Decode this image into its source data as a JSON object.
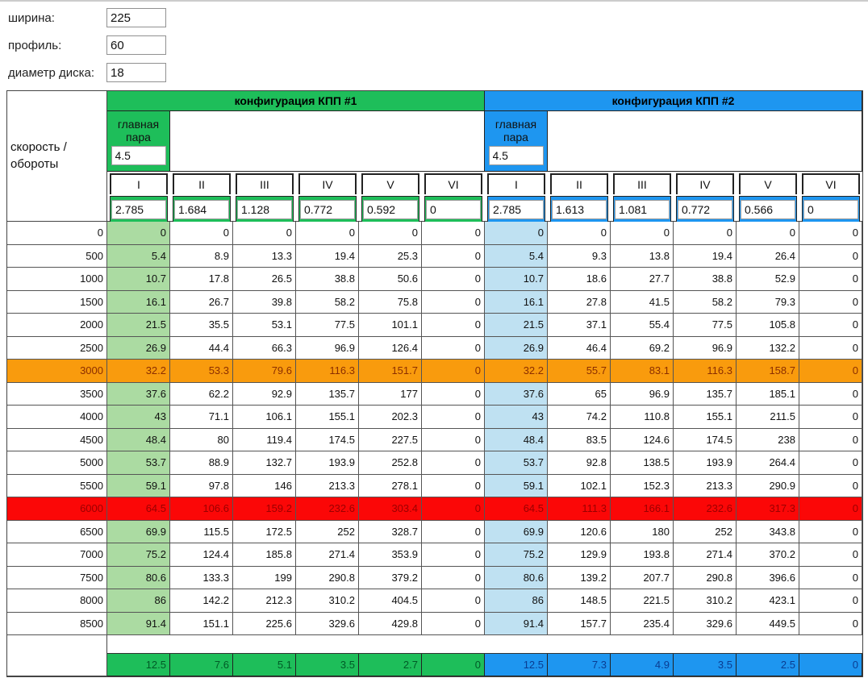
{
  "inputs": [
    {
      "label": "ширина:",
      "value": "225"
    },
    {
      "label": "профиль:",
      "value": "60"
    },
    {
      "label": "диаметр диска:",
      "value": "18"
    }
  ],
  "table": {
    "corner_label": "скорость / обороты",
    "final_drive_label": "главная пара",
    "configs": [
      {
        "title": "конфигурация КПП #1",
        "final_drive": "4.5",
        "gear_labels": [
          "I",
          "II",
          "III",
          "IV",
          "V",
          "VI"
        ],
        "ratios": [
          "2.785",
          "1.684",
          "1.128",
          "0.772",
          "0.592",
          "0"
        ],
        "footer": [
          "12.5",
          "7.6",
          "5.1",
          "3.5",
          "2.7",
          "0"
        ]
      },
      {
        "title": "конфигурация КПП #2",
        "final_drive": "4.5",
        "gear_labels": [
          "I",
          "II",
          "III",
          "IV",
          "V",
          "VI"
        ],
        "ratios": [
          "2.785",
          "1.613",
          "1.081",
          "0.772",
          "0.566",
          "0"
        ],
        "footer": [
          "12.5",
          "7.3",
          "4.9",
          "3.5",
          "2.5",
          "0"
        ]
      }
    ],
    "rows": [
      {
        "rpm": "0",
        "c1": [
          "0",
          "0",
          "0",
          "0",
          "0",
          "0"
        ],
        "c2": [
          "0",
          "0",
          "0",
          "0",
          "0",
          "0"
        ],
        "highlight": ""
      },
      {
        "rpm": "500",
        "c1": [
          "5.4",
          "8.9",
          "13.3",
          "19.4",
          "25.3",
          "0"
        ],
        "c2": [
          "5.4",
          "9.3",
          "13.8",
          "19.4",
          "26.4",
          "0"
        ],
        "highlight": ""
      },
      {
        "rpm": "1000",
        "c1": [
          "10.7",
          "17.8",
          "26.5",
          "38.8",
          "50.6",
          "0"
        ],
        "c2": [
          "10.7",
          "18.6",
          "27.7",
          "38.8",
          "52.9",
          "0"
        ],
        "highlight": ""
      },
      {
        "rpm": "1500",
        "c1": [
          "16.1",
          "26.7",
          "39.8",
          "58.2",
          "75.8",
          "0"
        ],
        "c2": [
          "16.1",
          "27.8",
          "41.5",
          "58.2",
          "79.3",
          "0"
        ],
        "highlight": ""
      },
      {
        "rpm": "2000",
        "c1": [
          "21.5",
          "35.5",
          "53.1",
          "77.5",
          "101.1",
          "0"
        ],
        "c2": [
          "21.5",
          "37.1",
          "55.4",
          "77.5",
          "105.8",
          "0"
        ],
        "highlight": ""
      },
      {
        "rpm": "2500",
        "c1": [
          "26.9",
          "44.4",
          "66.3",
          "96.9",
          "126.4",
          "0"
        ],
        "c2": [
          "26.9",
          "46.4",
          "69.2",
          "96.9",
          "132.2",
          "0"
        ],
        "highlight": ""
      },
      {
        "rpm": "3000",
        "c1": [
          "32.2",
          "53.3",
          "79.6",
          "116.3",
          "151.7",
          "0"
        ],
        "c2": [
          "32.2",
          "55.7",
          "83.1",
          "116.3",
          "158.7",
          "0"
        ],
        "highlight": "orange"
      },
      {
        "rpm": "3500",
        "c1": [
          "37.6",
          "62.2",
          "92.9",
          "135.7",
          "177",
          "0"
        ],
        "c2": [
          "37.6",
          "65",
          "96.9",
          "135.7",
          "185.1",
          "0"
        ],
        "highlight": ""
      },
      {
        "rpm": "4000",
        "c1": [
          "43",
          "71.1",
          "106.1",
          "155.1",
          "202.3",
          "0"
        ],
        "c2": [
          "43",
          "74.2",
          "110.8",
          "155.1",
          "211.5",
          "0"
        ],
        "highlight": ""
      },
      {
        "rpm": "4500",
        "c1": [
          "48.4",
          "80",
          "119.4",
          "174.5",
          "227.5",
          "0"
        ],
        "c2": [
          "48.4",
          "83.5",
          "124.6",
          "174.5",
          "238",
          "0"
        ],
        "highlight": ""
      },
      {
        "rpm": "5000",
        "c1": [
          "53.7",
          "88.9",
          "132.7",
          "193.9",
          "252.8",
          "0"
        ],
        "c2": [
          "53.7",
          "92.8",
          "138.5",
          "193.9",
          "264.4",
          "0"
        ],
        "highlight": ""
      },
      {
        "rpm": "5500",
        "c1": [
          "59.1",
          "97.8",
          "146",
          "213.3",
          "278.1",
          "0"
        ],
        "c2": [
          "59.1",
          "102.1",
          "152.3",
          "213.3",
          "290.9",
          "0"
        ],
        "highlight": ""
      },
      {
        "rpm": "6000",
        "c1": [
          "64.5",
          "106.6",
          "159.2",
          "232.6",
          "303.4",
          "0"
        ],
        "c2": [
          "64.5",
          "111.3",
          "166.1",
          "232.6",
          "317.3",
          "0"
        ],
        "highlight": "red"
      },
      {
        "rpm": "6500",
        "c1": [
          "69.9",
          "115.5",
          "172.5",
          "252",
          "328.7",
          "0"
        ],
        "c2": [
          "69.9",
          "120.6",
          "180",
          "252",
          "343.8",
          "0"
        ],
        "highlight": ""
      },
      {
        "rpm": "7000",
        "c1": [
          "75.2",
          "124.4",
          "185.8",
          "271.4",
          "353.9",
          "0"
        ],
        "c2": [
          "75.2",
          "129.9",
          "193.8",
          "271.4",
          "370.2",
          "0"
        ],
        "highlight": ""
      },
      {
        "rpm": "7500",
        "c1": [
          "80.6",
          "133.3",
          "199",
          "290.8",
          "379.2",
          "0"
        ],
        "c2": [
          "80.6",
          "139.2",
          "207.7",
          "290.8",
          "396.6",
          "0"
        ],
        "highlight": ""
      },
      {
        "rpm": "8000",
        "c1": [
          "86",
          "142.2",
          "212.3",
          "310.2",
          "404.5",
          "0"
        ],
        "c2": [
          "86",
          "148.5",
          "221.5",
          "310.2",
          "423.1",
          "0"
        ],
        "highlight": ""
      },
      {
        "rpm": "8500",
        "c1": [
          "91.4",
          "151.1",
          "225.6",
          "329.6",
          "429.8",
          "0"
        ],
        "c2": [
          "91.4",
          "157.7",
          "235.4",
          "329.6",
          "449.5",
          "0"
        ],
        "highlight": ""
      }
    ]
  },
  "colors": {
    "green": "#1EBE5A",
    "blue": "#1E96F0",
    "light_green": "#ABDBA2",
    "light_blue": "#BFE1F2",
    "orange": "#F99B0D",
    "red": "#FB0707",
    "orange_text": "#8B2E00",
    "red_text": "#9B0000",
    "footer_green_text": "#005A26",
    "footer_blue_text": "#0A3C91"
  }
}
